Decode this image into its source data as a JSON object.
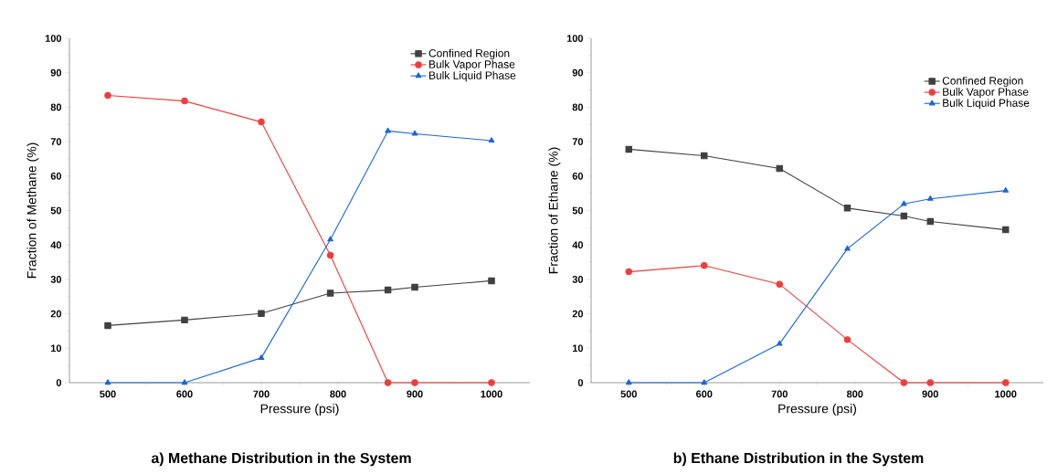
{
  "chart_data": [
    {
      "type": "line",
      "title": "a) Methane Distribution in the System",
      "xlabel": "Pressure (psi)",
      "ylabel": "Fraction of Methane (%)",
      "x": [
        500,
        600,
        700,
        790,
        865,
        900,
        1000
      ],
      "series": [
        {
          "name": "Confined Region",
          "color": "#404040",
          "marker": "square",
          "values": [
            16.6,
            18.2,
            20.1,
            26.0,
            26.9,
            27.7,
            29.6
          ]
        },
        {
          "name": "Bulk Vapor Phase",
          "color": "#f03c3c",
          "marker": "circle",
          "values": [
            83.4,
            81.8,
            75.7,
            37.0,
            0,
            0,
            0
          ]
        },
        {
          "name": "Bulk Liquid Phase",
          "color": "#1a66dd",
          "marker": "triangle",
          "values": [
            0,
            0,
            7.2,
            41.6,
            73.1,
            72.3,
            70.3
          ]
        }
      ],
      "xlim": [
        450,
        1050
      ],
      "ylim": [
        0,
        100
      ],
      "xticks": [
        500,
        {
          "value": 550,
          "label": null
        },
        600,
        {
          "value": 650,
          "label": null
        },
        700,
        {
          "value": 750,
          "label": null
        },
        800,
        {
          "value": 850,
          "label": null
        },
        900,
        {
          "value": 950,
          "label": null
        },
        1000
      ],
      "yticks": [
        0,
        {
          "value": 5,
          "label": null
        },
        10,
        {
          "value": 15,
          "label": null
        },
        20,
        {
          "value": 25,
          "label": null
        },
        30,
        {
          "value": 35,
          "label": null
        },
        40,
        {
          "value": 45,
          "label": null
        },
        50,
        {
          "value": 55,
          "label": null
        },
        60,
        {
          "value": 65,
          "label": null
        },
        70,
        {
          "value": 75,
          "label": null
        },
        80,
        {
          "value": 85,
          "label": null
        },
        90,
        {
          "value": 95,
          "label": null
        },
        100
      ],
      "grid": false,
      "legend": "top right",
      "line_style": "solid"
    },
    {
      "type": "line",
      "title": "b) Ethane Distribution in the System",
      "xlabel": "Pressure (psi)",
      "ylabel": "Fraction of Ethane (%)",
      "x": [
        500,
        600,
        700,
        790,
        865,
        900,
        1000
      ],
      "series": [
        {
          "name": "Confined Region",
          "color": "#404040",
          "marker": "square",
          "values": [
            67.8,
            65.9,
            62.2,
            50.7,
            48.4,
            46.8,
            44.4
          ]
        },
        {
          "name": "Bulk Vapor Phase",
          "color": "#f03c3c",
          "marker": "circle",
          "values": [
            32.2,
            34.0,
            28.6,
            12.5,
            0,
            0,
            0
          ]
        },
        {
          "name": "Bulk Liquid Phase",
          "color": "#1a66dd",
          "marker": "triangle",
          "values": [
            0,
            0,
            11.3,
            38.9,
            51.9,
            53.4,
            55.8
          ]
        }
      ],
      "xlim": [
        450,
        1050
      ],
      "ylim": [
        0,
        100
      ],
      "xticks": [
        500,
        {
          "value": 550,
          "label": null
        },
        600,
        {
          "value": 650,
          "label": null
        },
        700,
        {
          "value": 750,
          "label": null
        },
        800,
        {
          "value": 850,
          "label": null
        },
        900,
        {
          "value": 950,
          "label": null
        },
        1000
      ],
      "yticks": [
        0,
        {
          "value": 5,
          "label": null
        },
        10,
        {
          "value": 15,
          "label": null
        },
        20,
        {
          "value": 25,
          "label": null
        },
        30,
        {
          "value": 35,
          "label": null
        },
        40,
        {
          "value": 45,
          "label": null
        },
        50,
        {
          "value": 55,
          "label": null
        },
        60,
        {
          "value": 65,
          "label": null
        },
        70,
        {
          "value": 75,
          "label": null
        },
        80,
        {
          "value": 85,
          "label": null
        },
        90,
        {
          "value": 95,
          "label": null
        },
        100
      ],
      "grid": false,
      "legend": "top right",
      "line_style": "solid"
    }
  ]
}
